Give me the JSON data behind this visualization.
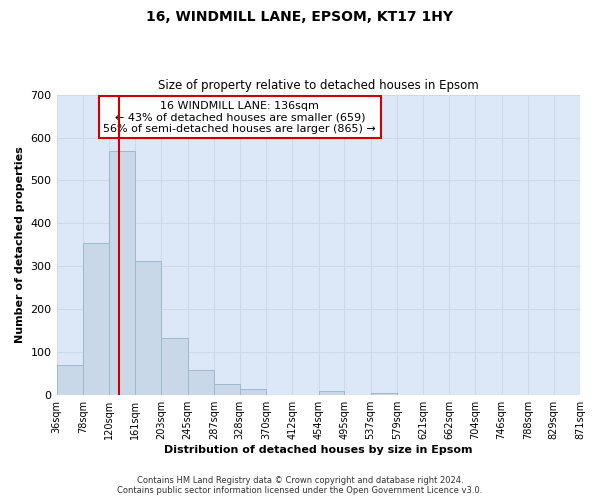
{
  "title": "16, WINDMILL LANE, EPSOM, KT17 1HY",
  "subtitle": "Size of property relative to detached houses in Epsom",
  "xlabel": "Distribution of detached houses by size in Epsom",
  "ylabel": "Number of detached properties",
  "bar_color": "#c8d8e8",
  "bar_edge_color": "#a0b8cc",
  "vline_x": 136,
  "vline_color": "#cc0000",
  "annotation_lines": [
    "16 WINDMILL LANE: 136sqm",
    "← 43% of detached houses are smaller (659)",
    "56% of semi-detached houses are larger (865) →"
  ],
  "annotation_box_color": "#ffffff",
  "annotation_box_edge_color": "#cc0000",
  "bin_edges": [
    36,
    78,
    120,
    161,
    203,
    245,
    287,
    328,
    370,
    412,
    454,
    495,
    537,
    579,
    621,
    662,
    704,
    746,
    788,
    829,
    871
  ],
  "bin_counts": [
    70,
    355,
    568,
    313,
    133,
    58,
    27,
    14,
    0,
    0,
    10,
    0,
    4,
    0,
    0,
    0,
    0,
    0,
    0,
    0
  ],
  "ylim": [
    0,
    700
  ],
  "yticks": [
    0,
    100,
    200,
    300,
    400,
    500,
    600,
    700
  ],
  "grid_color": "#d0d8e8",
  "background_color": "#dce8f8",
  "footer_line1": "Contains HM Land Registry data © Crown copyright and database right 2024.",
  "footer_line2": "Contains public sector information licensed under the Open Government Licence v3.0."
}
